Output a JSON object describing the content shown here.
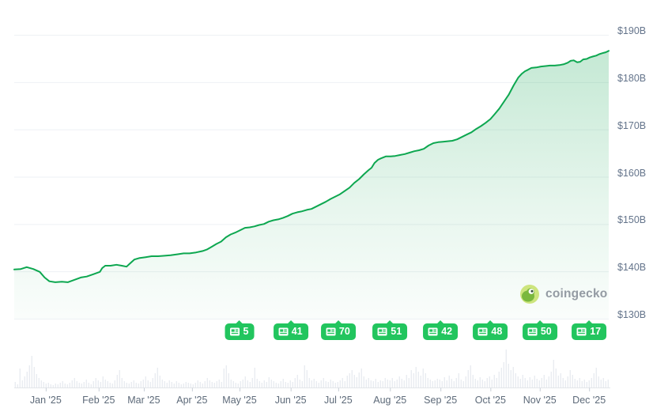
{
  "watermark": {
    "text": "coingecko"
  },
  "colors": {
    "line": "#0da750",
    "area_fill": "#10a450",
    "badge_green": "#22c55e",
    "volume_bar": "#e9ecf1",
    "gridline": "#eef1f4",
    "axis_line": "#e3e6ea",
    "axis_tick": "#c9cfd7",
    "y_label": "#64748b",
    "x_label": "#5d6a79",
    "watermark_text": "#949ba3"
  },
  "chart_data": {
    "type": "area",
    "title": "",
    "unit": "USD billions",
    "grid": true,
    "legend": "none",
    "y_axis": {
      "labels": [
        "$190B",
        "$180B",
        "$170B",
        "$160B",
        "$150B",
        "$140B",
        "$130B"
      ],
      "values": [
        190,
        180,
        170,
        160,
        150,
        140,
        130
      ],
      "range": [
        130,
        190
      ],
      "position": "right"
    },
    "x_axis": {
      "months": [
        {
          "label": "Jan '25",
          "t": 0.053
        },
        {
          "label": "Feb '25",
          "t": 0.142
        },
        {
          "label": "Mar '25",
          "t": 0.218
        },
        {
          "label": "Apr '25",
          "t": 0.299
        },
        {
          "label": "May '25",
          "t": 0.379
        },
        {
          "label": "Jun '25",
          "t": 0.465
        },
        {
          "label": "Jul '25",
          "t": 0.545
        },
        {
          "label": "Aug '25",
          "t": 0.632
        },
        {
          "label": "Sep '25",
          "t": 0.717
        },
        {
          "label": "Oct '25",
          "t": 0.801
        },
        {
          "label": "Nov '25",
          "t": 0.884
        },
        {
          "label": "Dec '25",
          "t": 0.967
        }
      ]
    },
    "series": [
      {
        "name": "market-cap-billions-usd",
        "points": [
          [
            0.0,
            140.4
          ],
          [
            0.011,
            140.5
          ],
          [
            0.021,
            140.9
          ],
          [
            0.032,
            140.5
          ],
          [
            0.043,
            139.9
          ],
          [
            0.051,
            138.7
          ],
          [
            0.059,
            137.9
          ],
          [
            0.069,
            137.7
          ],
          [
            0.08,
            137.8
          ],
          [
            0.09,
            137.7
          ],
          [
            0.101,
            138.2
          ],
          [
            0.112,
            138.7
          ],
          [
            0.122,
            138.9
          ],
          [
            0.133,
            139.4
          ],
          [
            0.144,
            139.9
          ],
          [
            0.148,
            140.7
          ],
          [
            0.153,
            141.2
          ],
          [
            0.162,
            141.2
          ],
          [
            0.172,
            141.4
          ],
          [
            0.181,
            141.2
          ],
          [
            0.189,
            141.0
          ],
          [
            0.195,
            141.7
          ],
          [
            0.202,
            142.5
          ],
          [
            0.21,
            142.8
          ],
          [
            0.221,
            143.0
          ],
          [
            0.231,
            143.2
          ],
          [
            0.242,
            143.2
          ],
          [
            0.253,
            143.3
          ],
          [
            0.263,
            143.4
          ],
          [
            0.274,
            143.6
          ],
          [
            0.285,
            143.8
          ],
          [
            0.295,
            143.8
          ],
          [
            0.306,
            144.0
          ],
          [
            0.317,
            144.3
          ],
          [
            0.324,
            144.6
          ],
          [
            0.332,
            145.2
          ],
          [
            0.34,
            145.8
          ],
          [
            0.348,
            146.3
          ],
          [
            0.356,
            147.2
          ],
          [
            0.364,
            147.8
          ],
          [
            0.372,
            148.2
          ],
          [
            0.38,
            148.7
          ],
          [
            0.388,
            149.2
          ],
          [
            0.396,
            149.3
          ],
          [
            0.404,
            149.5
          ],
          [
            0.412,
            149.8
          ],
          [
            0.42,
            150.0
          ],
          [
            0.428,
            150.5
          ],
          [
            0.436,
            150.8
          ],
          [
            0.444,
            151.0
          ],
          [
            0.452,
            151.3
          ],
          [
            0.46,
            151.7
          ],
          [
            0.468,
            152.2
          ],
          [
            0.476,
            152.5
          ],
          [
            0.484,
            152.7
          ],
          [
            0.492,
            153.0
          ],
          [
            0.5,
            153.2
          ],
          [
            0.508,
            153.7
          ],
          [
            0.516,
            154.2
          ],
          [
            0.524,
            154.7
          ],
          [
            0.532,
            155.3
          ],
          [
            0.54,
            155.8
          ],
          [
            0.548,
            156.3
          ],
          [
            0.556,
            157.0
          ],
          [
            0.564,
            157.7
          ],
          [
            0.572,
            158.7
          ],
          [
            0.58,
            159.5
          ],
          [
            0.588,
            160.5
          ],
          [
            0.596,
            161.4
          ],
          [
            0.601,
            161.9
          ],
          [
            0.606,
            162.9
          ],
          [
            0.612,
            163.6
          ],
          [
            0.617,
            163.9
          ],
          [
            0.625,
            164.3
          ],
          [
            0.633,
            164.3
          ],
          [
            0.641,
            164.4
          ],
          [
            0.649,
            164.6
          ],
          [
            0.657,
            164.8
          ],
          [
            0.665,
            165.1
          ],
          [
            0.673,
            165.4
          ],
          [
            0.681,
            165.6
          ],
          [
            0.689,
            165.9
          ],
          [
            0.697,
            166.6
          ],
          [
            0.705,
            167.1
          ],
          [
            0.713,
            167.3
          ],
          [
            0.721,
            167.4
          ],
          [
            0.729,
            167.5
          ],
          [
            0.737,
            167.6
          ],
          [
            0.745,
            167.9
          ],
          [
            0.753,
            168.4
          ],
          [
            0.761,
            168.9
          ],
          [
            0.769,
            169.4
          ],
          [
            0.777,
            170.1
          ],
          [
            0.785,
            170.7
          ],
          [
            0.793,
            171.4
          ],
          [
            0.801,
            172.2
          ],
          [
            0.808,
            173.2
          ],
          [
            0.816,
            174.4
          ],
          [
            0.824,
            175.9
          ],
          [
            0.832,
            177.4
          ],
          [
            0.84,
            179.3
          ],
          [
            0.848,
            181.0
          ],
          [
            0.854,
            181.8
          ],
          [
            0.859,
            182.3
          ],
          [
            0.864,
            182.6
          ],
          [
            0.87,
            183.0
          ],
          [
            0.878,
            183.1
          ],
          [
            0.886,
            183.3
          ],
          [
            0.894,
            183.4
          ],
          [
            0.901,
            183.5
          ],
          [
            0.909,
            183.5
          ],
          [
            0.917,
            183.6
          ],
          [
            0.925,
            183.8
          ],
          [
            0.931,
            184.1
          ],
          [
            0.936,
            184.5
          ],
          [
            0.941,
            184.6
          ],
          [
            0.947,
            184.2
          ],
          [
            0.952,
            184.3
          ],
          [
            0.957,
            184.8
          ],
          [
            0.963,
            184.9
          ],
          [
            0.968,
            185.2
          ],
          [
            0.973,
            185.4
          ],
          [
            0.979,
            185.6
          ],
          [
            0.984,
            185.9
          ],
          [
            0.989,
            186.1
          ],
          [
            0.995,
            186.3
          ],
          [
            1.0,
            186.6
          ]
        ]
      }
    ],
    "news_markers": [
      {
        "count": "5",
        "t": 0.379
      },
      {
        "count": "41",
        "t": 0.465
      },
      {
        "count": "70",
        "t": 0.545
      },
      {
        "count": "51",
        "t": 0.632
      },
      {
        "count": "42",
        "t": 0.717
      },
      {
        "count": "48",
        "t": 0.801
      },
      {
        "count": "50",
        "t": 0.884
      },
      {
        "count": "17",
        "t": 0.967
      }
    ],
    "volume": [
      7,
      4,
      24,
      9,
      14,
      20,
      28,
      40,
      26,
      17,
      12,
      9,
      7,
      5,
      6,
      4,
      3,
      5,
      4,
      6,
      8,
      5,
      4,
      6,
      9,
      12,
      8,
      6,
      5,
      7,
      10,
      6,
      4,
      8,
      12,
      9,
      7,
      14,
      10,
      8,
      6,
      5,
      9,
      16,
      22,
      12,
      8,
      6,
      5,
      7,
      9,
      6,
      5,
      8,
      10,
      14,
      9,
      7,
      12,
      18,
      25,
      15,
      10,
      8,
      6,
      9,
      7,
      5,
      8,
      6,
      4,
      5,
      7,
      6,
      5,
      4,
      6,
      9,
      7,
      5,
      8,
      12,
      9,
      7,
      6,
      8,
      10,
      7,
      24,
      28,
      18,
      10,
      8,
      6,
      5,
      8,
      10,
      14,
      9,
      7,
      12,
      25,
      11,
      8,
      6,
      9,
      7,
      13,
      10,
      8,
      6,
      5,
      8,
      11,
      7,
      6,
      9,
      7,
      12,
      16,
      10,
      8,
      28,
      22,
      12,
      9,
      11,
      8,
      6,
      9,
      12,
      8,
      7,
      10,
      8,
      6,
      7,
      9,
      12,
      8,
      15,
      18,
      22,
      16,
      13,
      19,
      24,
      14,
      10,
      12,
      9,
      8,
      11,
      7,
      9,
      8,
      12,
      10,
      9,
      12,
      8,
      10,
      14,
      11,
      9,
      16,
      12,
      22,
      18,
      26,
      20,
      15,
      24,
      18,
      12,
      10,
      8,
      9,
      11,
      10,
      8,
      13,
      9,
      15,
      11,
      8,
      12,
      18,
      10,
      8,
      14,
      22,
      28,
      16,
      11,
      9,
      13,
      10,
      8,
      12,
      14,
      10,
      16,
      12,
      20,
      25,
      32,
      48,
      30,
      22,
      26,
      18,
      14,
      11,
      16,
      12,
      9,
      13,
      10,
      15,
      11,
      9,
      12,
      16,
      10,
      14,
      20,
      35,
      24,
      15,
      18,
      12,
      9,
      14,
      22,
      16,
      11,
      9,
      12,
      8,
      10,
      7,
      9,
      12,
      18,
      25,
      14,
      10,
      12,
      8,
      10
    ]
  }
}
